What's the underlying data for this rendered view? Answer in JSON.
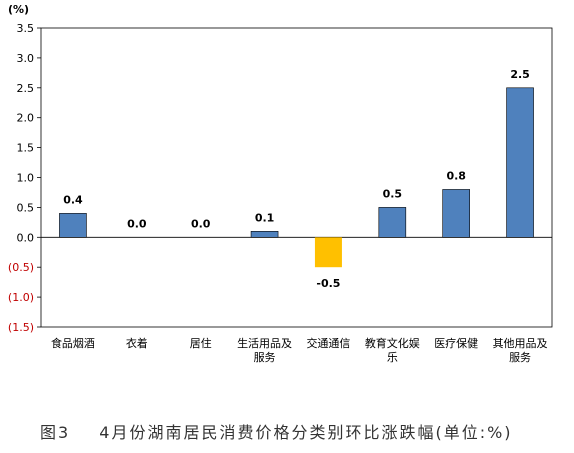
{
  "chart_data": {
    "type": "bar",
    "unit_label": "(%)",
    "categories": [
      [
        "食品烟酒"
      ],
      [
        "衣着"
      ],
      [
        "居住"
      ],
      [
        "生活用品及",
        "服务"
      ],
      [
        "交通通信"
      ],
      [
        "教育文化娱",
        "乐"
      ],
      [
        "医疗保健"
      ],
      [
        "其他用品及",
        "服务"
      ]
    ],
    "values": [
      0.4,
      0.0,
      0.0,
      0.1,
      -0.5,
      0.5,
      0.8,
      2.5
    ],
    "data_labels": [
      "0.4",
      "0.0",
      "0.0",
      "0.1",
      "-0.5",
      "0.5",
      "0.8",
      "2.5"
    ],
    "ylim": [
      -1.5,
      3.5
    ],
    "yticks": [
      3.5,
      3.0,
      2.5,
      2.0,
      1.5,
      1.0,
      0.5,
      0.0,
      -0.5,
      -1.0,
      -1.5
    ],
    "ytick_labels": [
      "3.5",
      "3.0",
      "2.5",
      "2.0",
      "1.5",
      "1.0",
      "0.5",
      "0.0",
      "(0.5)",
      "(1.0)",
      "(1.5)"
    ],
    "colors": {
      "positive": "#4F81BD",
      "negative": "#FFC000",
      "negative_tick": "#C00000",
      "axis": "#000000",
      "text": "#000000"
    },
    "grid": false,
    "legend": "none"
  },
  "caption": {
    "figure_no": "图3",
    "text": "4月份湖南居民消费价格分类别环比涨跌幅(单位:%)"
  }
}
